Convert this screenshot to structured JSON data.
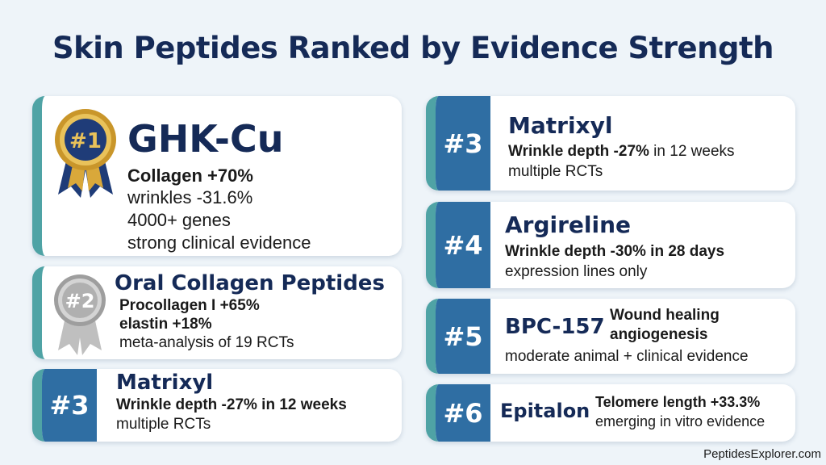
{
  "title": "Skin Peptides Ranked by Evidence Strength",
  "site": "PeptidesExplorer.com",
  "colors": {
    "navy": "#152a57",
    "badge_blue": "#2f6ea3",
    "teal": "#4fa3a5",
    "gold": "#c9962a",
    "silver": "#b8b8b8"
  },
  "left": {
    "r1": {
      "badge": "#1",
      "name": "GHK-Cu",
      "l1": "Collagen +70%",
      "l2": "wrinkles -31.6%",
      "l3": "4000+ genes",
      "l4": "strong clinical evidence",
      "medal": "gold-medal-icon"
    },
    "r2": {
      "badge": "#2",
      "name": "Oral Collagen Peptides",
      "l1": "Procollagen I +65%",
      "l2": "elastin +18%",
      "l3": "meta-analysis of 19 RCTs",
      "medal": "silver-medal-icon"
    },
    "r3": {
      "badge": "#3",
      "name": "Matrixyl",
      "l1": "Wrinkle depth -27% in 12 weeks",
      "l2": "multiple RCTs"
    }
  },
  "right": {
    "r3": {
      "badge": "#3",
      "name": "Matrixyl",
      "l1_bold": "Wrinkle depth -27%",
      "l1_rest": " in 12 weeks",
      "l2": "multiple RCTs"
    },
    "r4": {
      "badge": "#4",
      "name": "Argireline",
      "l1": "Wrinkle depth -30% in 28 days",
      "l2": "expression lines only"
    },
    "r5": {
      "badge": "#5",
      "name": "BPC-157",
      "tag1": "Wound healing",
      "tag2": "angiogenesis",
      "l2": "moderate animal + clinical evidence"
    },
    "r6": {
      "badge": "#6",
      "name": "Epitalon",
      "l1": "Telomere length +33.3%",
      "l2": "emerging in vitro evidence"
    }
  }
}
